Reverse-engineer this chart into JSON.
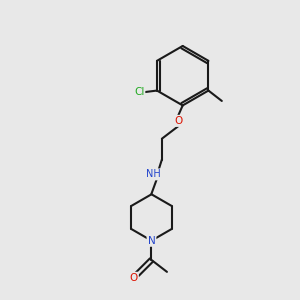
{
  "bg_color": "#e8e8e8",
  "bond_color": "#1a1a1a",
  "cl_color": "#22aa22",
  "o_color": "#dd1100",
  "n_color": "#2244cc",
  "lw": 1.5,
  "fig_w": 3.0,
  "fig_h": 3.0,
  "dpi": 100,
  "xlim": [
    0,
    10
  ],
  "ylim": [
    0,
    10
  ]
}
